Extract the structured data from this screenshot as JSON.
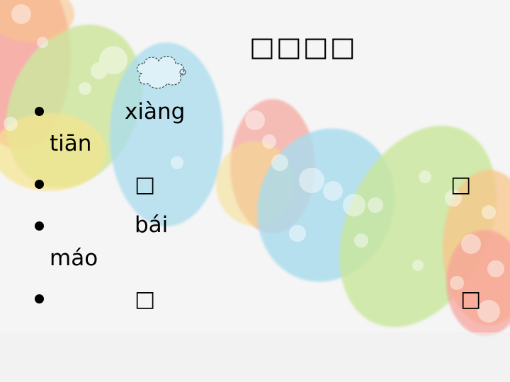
{
  "slide": {
    "title": "□□□□",
    "bullets": [
      {
        "first": "xiàng",
        "second": "tiān"
      },
      {
        "left_char": "□",
        "right_char": "□"
      },
      {
        "first": "bái",
        "second": "máo"
      },
      {
        "left_char": "□",
        "right_char": "□"
      }
    ]
  },
  "colors": {
    "red": "#f7a199",
    "blue": "#a9dcef",
    "green": "#c9e79a",
    "yellow": "#f3e28a",
    "orange": "#f9c58a"
  }
}
